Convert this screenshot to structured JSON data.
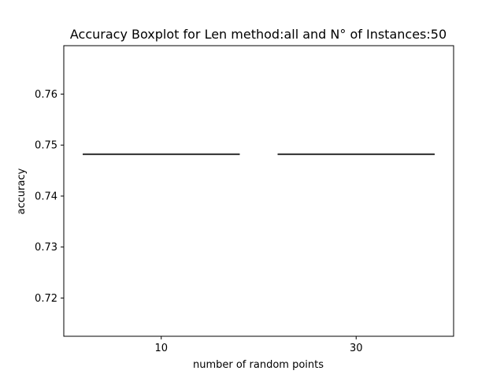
{
  "chart_data": {
    "type": "box",
    "title": "Accuracy Boxplot for Len method:all and N° of Instances:50",
    "xlabel": "number of random points",
    "ylabel": "accuracy",
    "categories": [
      "10",
      "30"
    ],
    "series": [
      {
        "boxes": [
          {
            "category": "10",
            "min": 0.7482,
            "q1": 0.7482,
            "median": 0.7482,
            "q3": 0.7482,
            "max": 0.7482
          },
          {
            "category": "30",
            "min": 0.7482,
            "q1": 0.7482,
            "median": 0.7482,
            "q3": 0.7482,
            "max": 0.7482
          }
        ]
      }
    ],
    "ylim": [
      0.7125,
      0.7695
    ],
    "yticks": [
      0.72,
      0.73,
      0.74,
      0.75,
      0.76
    ],
    "ytick_labels": [
      "0.72",
      "0.73",
      "0.74",
      "0.75",
      "0.76"
    ],
    "grid": false,
    "legend": "none",
    "box_color": "#3d3d3d"
  }
}
